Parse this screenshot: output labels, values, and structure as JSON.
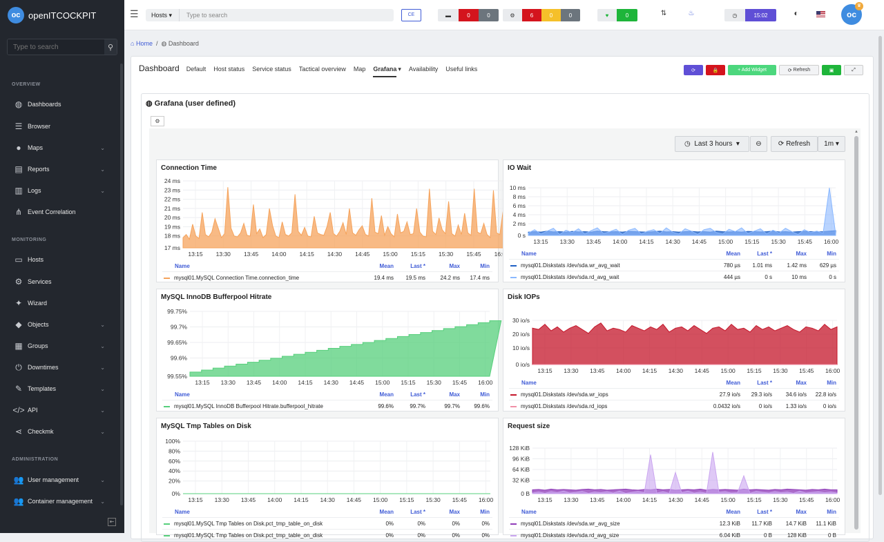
{
  "app": {
    "name": "openITCOCKPIT",
    "logo": "oc"
  },
  "sidebar": {
    "search_placeholder": "Type to search",
    "sections": {
      "overview": "OVERVIEW",
      "monitoring": "MONITORING",
      "administration": "ADMINISTRATION"
    },
    "items": [
      {
        "label": "Dashboards",
        "icon": "palette-icon",
        "glyph": "◍",
        "chev": false,
        "y": 151
      },
      {
        "label": "Browser",
        "icon": "list-icon",
        "glyph": "☰",
        "chev": false,
        "y": 183
      },
      {
        "label": "Maps",
        "icon": "map-marker-icon",
        "glyph": "●",
        "chev": true,
        "y": 214
      },
      {
        "label": "Reports",
        "icon": "file-icon",
        "glyph": "▤",
        "chev": true,
        "y": 245
      },
      {
        "label": "Logs",
        "icon": "file-text-icon",
        "glyph": "▥",
        "chev": true,
        "y": 276
      },
      {
        "label": "Event Correlation",
        "icon": "sitemap-icon",
        "glyph": "⋔",
        "chev": false,
        "y": 307
      },
      {
        "label": "Hosts",
        "icon": "desktop-icon",
        "glyph": "▭",
        "chev": false,
        "y": 376
      },
      {
        "label": "Services",
        "icon": "cogs-icon",
        "glyph": "⚙",
        "chev": false,
        "y": 408
      },
      {
        "label": "Wizard",
        "icon": "wand-icon",
        "glyph": "✦",
        "chev": false,
        "y": 439
      },
      {
        "label": "Objects",
        "icon": "cubes-icon",
        "glyph": "◆",
        "chev": true,
        "y": 470
      },
      {
        "label": "Groups",
        "icon": "grid-icon",
        "glyph": "▦",
        "chev": true,
        "y": 501
      },
      {
        "label": "Downtimes",
        "icon": "power-icon",
        "glyph": "⏻",
        "chev": true,
        "y": 532
      },
      {
        "label": "Templates",
        "icon": "pencil-square-icon",
        "glyph": "✎",
        "chev": true,
        "y": 563
      },
      {
        "label": "API",
        "icon": "code-icon",
        "glyph": "</>",
        "chev": true,
        "y": 594
      },
      {
        "label": "Checkmk",
        "icon": "share-icon",
        "glyph": "⋖",
        "chev": true,
        "y": 625
      },
      {
        "label": "User management",
        "icon": "users-icon",
        "glyph": "👥",
        "chev": true,
        "y": 695
      },
      {
        "label": "Container management",
        "icon": "users-cog-icon",
        "glyph": "👥",
        "chev": true,
        "y": 726
      }
    ]
  },
  "topbar": {
    "search_scope": "Hosts",
    "search_placeholder": "Type to search",
    "edition": "CE",
    "host_counts": [
      "0",
      "0"
    ],
    "service_counts": [
      "6",
      "0",
      "0"
    ],
    "up_count": "0",
    "time": "15:02"
  },
  "breadcrumb": {
    "home": "Home",
    "current": "Dashboard"
  },
  "dashboard": {
    "title": "Dashboard",
    "tabs": [
      "Default",
      "Host status",
      "Service status",
      "Tactical overview",
      "Map",
      "Grafana",
      "Availability",
      "Useful links"
    ],
    "active_tab": "Grafana",
    "buttons": {
      "add_widget": "+ Add Widget",
      "refresh": "Refresh"
    }
  },
  "widget": {
    "title": "Grafana (user defined)"
  },
  "grafana": {
    "time_range": "Last 3 hours",
    "refresh": "Refresh",
    "interval": "1m"
  },
  "legend_headers": [
    "Name",
    "Mean",
    "Last *",
    "Max",
    "Min"
  ],
  "colors": {
    "orange": "#f5a35c",
    "blue_dark": "#1f60c4",
    "blue_light": "#8ab8ff",
    "cyan": "#73d0e8",
    "green": "#56cf7b",
    "red": "#c4162a",
    "pink": "#f08fa6",
    "purple": "#8f3bb8",
    "lavender": "#caa5f0"
  },
  "x_ticks": [
    "13:15",
    "13:30",
    "13:45",
    "14:00",
    "14:15",
    "14:30",
    "14:45",
    "15:00",
    "15:15",
    "15:30",
    "15:45",
    "16:00"
  ],
  "chart_data": [
    {
      "type": "area",
      "title": "Connection Time",
      "y_ticks": [
        "24 ms",
        "23 ms",
        "22 ms",
        "21 ms",
        "20 ms",
        "19 ms",
        "18 ms",
        "17 ms"
      ],
      "ylim": [
        16.5,
        25
      ],
      "series": [
        {
          "name": "mysql01.MySQL Connection Time.connection_time",
          "color": "#f5a35c",
          "mean": "19.4 ms",
          "last": "19.5 ms",
          "max": "24.2 ms",
          "min": "17.4 ms",
          "values": [
            17.8,
            18.2,
            17.6,
            19.5,
            18,
            17.7,
            21,
            18.2,
            17.9,
            18.5,
            20.2,
            19,
            17.8,
            18.3,
            24.2,
            19,
            18,
            17.9,
            18.4,
            19.6,
            18.1,
            18,
            22,
            18.3,
            18.9,
            17.8,
            18.2,
            21.5,
            19.3,
            18,
            17.8,
            19.8,
            18.2,
            18,
            18.4,
            23.3,
            18.6,
            18.1,
            19.1,
            18,
            17.9,
            20.5,
            18.4,
            18.2,
            18.1,
            19.2,
            21,
            18.3,
            18,
            18.6,
            19.7,
            18.2,
            21.5,
            18.4,
            18.1,
            18.8,
            19.3,
            18.2,
            18,
            22.8,
            18.5,
            18.3,
            20.6,
            18.1,
            19.2,
            18.3,
            17.9,
            20.8,
            18.4,
            18.6,
            19.8,
            18.2,
            18.3,
            21.5,
            18.5,
            18,
            17.9,
            24,
            18.6,
            18.2,
            20.3,
            18.8,
            18.3,
            22.4,
            18.3,
            18,
            19.4,
            18.2,
            20.9,
            18.4,
            18.1,
            24,
            18.5,
            18.3,
            19.6,
            18.2,
            17.8,
            23.8,
            18.4,
            18.2,
            21.1,
            19.5
          ]
        }
      ]
    },
    {
      "type": "area",
      "title": "IO Wait",
      "y_ticks": [
        "10 ms",
        "8 ms",
        "6 ms",
        "4 ms",
        "2 ms",
        "0 s"
      ],
      "ylim": [
        0,
        10
      ],
      "series": [
        {
          "name": "mysql01.Diskstats /dev/sda.wr_avg_wait",
          "color": "#1f60c4",
          "mean": "780 µs",
          "last": "1.01 ms",
          "max": "1.42 ms",
          "min": "629 µs",
          "values": [
            0.7,
            0.8,
            0.7,
            0.9,
            0.75,
            0.8,
            0.7,
            0.85,
            0.75,
            0.8,
            0.7,
            0.9,
            0.8,
            0.75,
            0.8,
            0.7,
            0.85,
            0.8,
            0.75,
            0.7,
            0.8,
            0.9,
            0.75,
            0.8,
            0.7,
            0.8,
            0.85,
            0.75,
            0.8,
            0.7,
            0.9,
            0.8,
            0.75,
            0.8,
            0.7,
            0.85,
            0.8,
            0.75,
            0.8,
            0.9,
            0.75,
            0.8,
            0.7,
            0.8,
            0.85,
            0.8,
            0.75,
            0.8,
            0.9,
            1.0
          ]
        },
        {
          "name": "mysql01.Diskstats /dev/sda.rd_avg_wait",
          "color": "#8ab8ff",
          "mean": "444 µs",
          "last": "0 s",
          "max": "10 ms",
          "min": "0 s",
          "values": [
            0.5,
            1.2,
            0.3,
            0.9,
            1.5,
            0.2,
            1.1,
            0.6,
            1.4,
            0.3,
            1.0,
            1.6,
            0.4,
            0.8,
            1.3,
            0.2,
            1.1,
            1.5,
            0.3,
            0.9,
            1.2,
            0.4,
            1.6,
            0.7,
            0.3,
            1.4,
            0.9,
            0.2,
            1.2,
            1.5,
            0.6,
            0.3,
            1.3,
            0.8,
            1.6,
            0.4,
            0.9,
            1.4,
            0.3,
            1.1,
            0.5,
            1.5,
            0.8,
            0.2,
            1.2,
            0.6,
            0.9,
            0.5,
            10,
            0.3
          ]
        }
      ]
    },
    {
      "type": "area",
      "title": "MySQL InnoDB Bufferpool Hitrate",
      "y_ticks": [
        "99.75%",
        "99.7%",
        "99.65%",
        "99.6%",
        "99.55%"
      ],
      "ylim": [
        99.53,
        99.76
      ],
      "series": [
        {
          "name": "mysql01.MySQL InnoDB Bufferpool Hitrate.bufferpool_hitrate",
          "color": "#56cf7b",
          "mean": "99.6%",
          "last": "99.7%",
          "max": "99.7%",
          "min": "99.6%",
          "values": [
            99.545,
            99.552,
            99.559,
            99.566,
            99.573,
            99.58,
            99.587,
            99.594,
            99.601,
            99.608,
            99.615,
            99.622,
            99.629,
            99.636,
            99.643,
            99.65,
            99.657,
            99.664,
            99.671,
            99.678,
            99.685,
            99.692,
            99.699,
            99.706,
            99.713,
            99.72,
            99.727
          ]
        }
      ]
    },
    {
      "type": "area",
      "title": "Disk IOPs",
      "y_ticks": [
        "30 io/s",
        "20 io/s",
        "10 io/s",
        "0 io/s"
      ],
      "ylim": [
        0,
        34
      ],
      "series": [
        {
          "name": "mysql01.Diskstats /dev/sda.wr_iops",
          "color": "#c4162a",
          "mean": "27.9 io/s",
          "last": "29.3 io/s",
          "max": "34.6 io/s",
          "min": "22.8 io/s",
          "values": [
            28,
            27,
            31,
            26,
            29,
            25,
            28,
            30,
            27,
            24,
            29,
            32,
            26,
            28,
            27,
            25,
            30,
            28,
            26,
            29,
            27,
            31,
            25,
            28,
            29,
            26,
            30,
            27,
            24,
            28,
            29,
            26,
            31,
            27,
            28,
            25,
            30,
            27,
            29,
            26,
            28,
            30,
            27,
            25,
            29,
            28,
            26,
            31,
            27,
            29
          ]
        },
        {
          "name": "mysql01.Diskstats /dev/sda.rd_iops",
          "color": "#f08fa6",
          "mean": "0.0432 io/s",
          "last": "0 io/s",
          "max": "1.33 io/s",
          "min": "0 io/s",
          "values": [
            0,
            0,
            0,
            0,
            0,
            0,
            0,
            0,
            0,
            0,
            0,
            0,
            0,
            0,
            0,
            0,
            0,
            0,
            0,
            0,
            0,
            0,
            0,
            0,
            0,
            0,
            0,
            0,
            0,
            0,
            0,
            0,
            0,
            0,
            0,
            0,
            0,
            0,
            0,
            0,
            0,
            0,
            0,
            0,
            0,
            0,
            0,
            0,
            0,
            0
          ]
        }
      ]
    },
    {
      "type": "area",
      "title": "MySQL Tmp Tables on Disk",
      "y_ticks": [
        "100%",
        "80%",
        "60%",
        "40%",
        "20%",
        "0%"
      ],
      "ylim": [
        0,
        100
      ],
      "series": [
        {
          "name": "mysql01.MySQL Tmp Tables on Disk.pct_tmp_table_on_disk",
          "color": "#56cf7b",
          "mean": "0%",
          "last": "0%",
          "max": "0%",
          "min": "0%",
          "values": [
            0,
            0,
            0,
            0,
            0,
            0,
            0,
            0,
            0,
            0,
            0,
            0
          ]
        },
        {
          "name": "mysql01.MySQL Tmp Tables on Disk.pct_tmp_table_on_disk",
          "color": "#56cf7b",
          "mean": "0%",
          "last": "0%",
          "max": "0%",
          "min": "0%",
          "values": [
            0,
            0,
            0,
            0,
            0,
            0,
            0,
            0,
            0,
            0,
            0,
            0
          ]
        }
      ]
    },
    {
      "type": "area",
      "title": "Request size",
      "y_ticks": [
        "128 KiB",
        "96 KiB",
        "64 KiB",
        "32 KiB",
        "0 B"
      ],
      "ylim": [
        0,
        140
      ],
      "series": [
        {
          "name": "mysql01.Diskstats /dev/sda.wr_avg_size",
          "color": "#8f3bb8",
          "mean": "12.3 KiB",
          "last": "11.7 KiB",
          "max": "14.7 KiB",
          "min": "11.1 KiB",
          "values": [
            12,
            13,
            11,
            14,
            12,
            13,
            12,
            11,
            13,
            14,
            12,
            13,
            11,
            12,
            13,
            14,
            12,
            11,
            13,
            12,
            14,
            12,
            13,
            11,
            12,
            13,
            12,
            14,
            11,
            13,
            12,
            13,
            12,
            11,
            14,
            12,
            13,
            12,
            11,
            13,
            12,
            14,
            13,
            12,
            11,
            13,
            12,
            14,
            12,
            12
          ]
        },
        {
          "name": "mysql01.Diskstats /dev/sda.rd_avg_size",
          "color": "#caa5f0",
          "mean": "6.04 KiB",
          "last": "0 B",
          "max": "128 KiB",
          "min": "0 B",
          "values": [
            2,
            5,
            1,
            6,
            3,
            8,
            2,
            4,
            7,
            1,
            5,
            3,
            6,
            2,
            8,
            1,
            4,
            7,
            3,
            120,
            2,
            6,
            1,
            65,
            3,
            8,
            2,
            5,
            1,
            128,
            4,
            6,
            2,
            3,
            55,
            1,
            7,
            4,
            2,
            6,
            3,
            5,
            1,
            8,
            2,
            4,
            6,
            3,
            5,
            2
          ]
        }
      ]
    }
  ]
}
